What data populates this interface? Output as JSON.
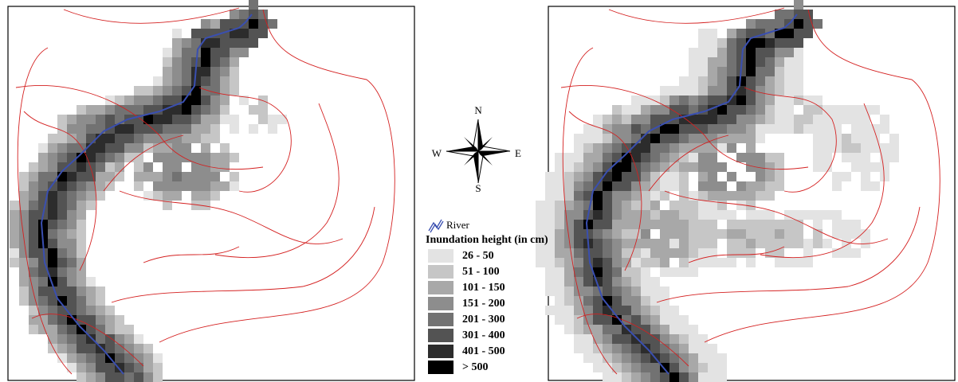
{
  "compass": {
    "north": "N",
    "east": "E",
    "south": "S",
    "west": "W"
  },
  "legend": {
    "river": "River",
    "title": "Inundation height (in cm)",
    "classes": [
      {
        "label": "26 - 50",
        "color": "#e3e3e3"
      },
      {
        "label": "51 - 100",
        "color": "#c6c6c6"
      },
      {
        "label": "101 - 150",
        "color": "#a8a8a8"
      },
      {
        "label": "151 - 200",
        "color": "#8d8d8d"
      },
      {
        "label": "201 - 300",
        "color": "#727272"
      },
      {
        "label": "301 - 400",
        "color": "#535353"
      },
      {
        "label": "401 - 500",
        "color": "#2c2c2c"
      },
      {
        "label": "> 500",
        "color": "#000000"
      }
    ]
  }
}
